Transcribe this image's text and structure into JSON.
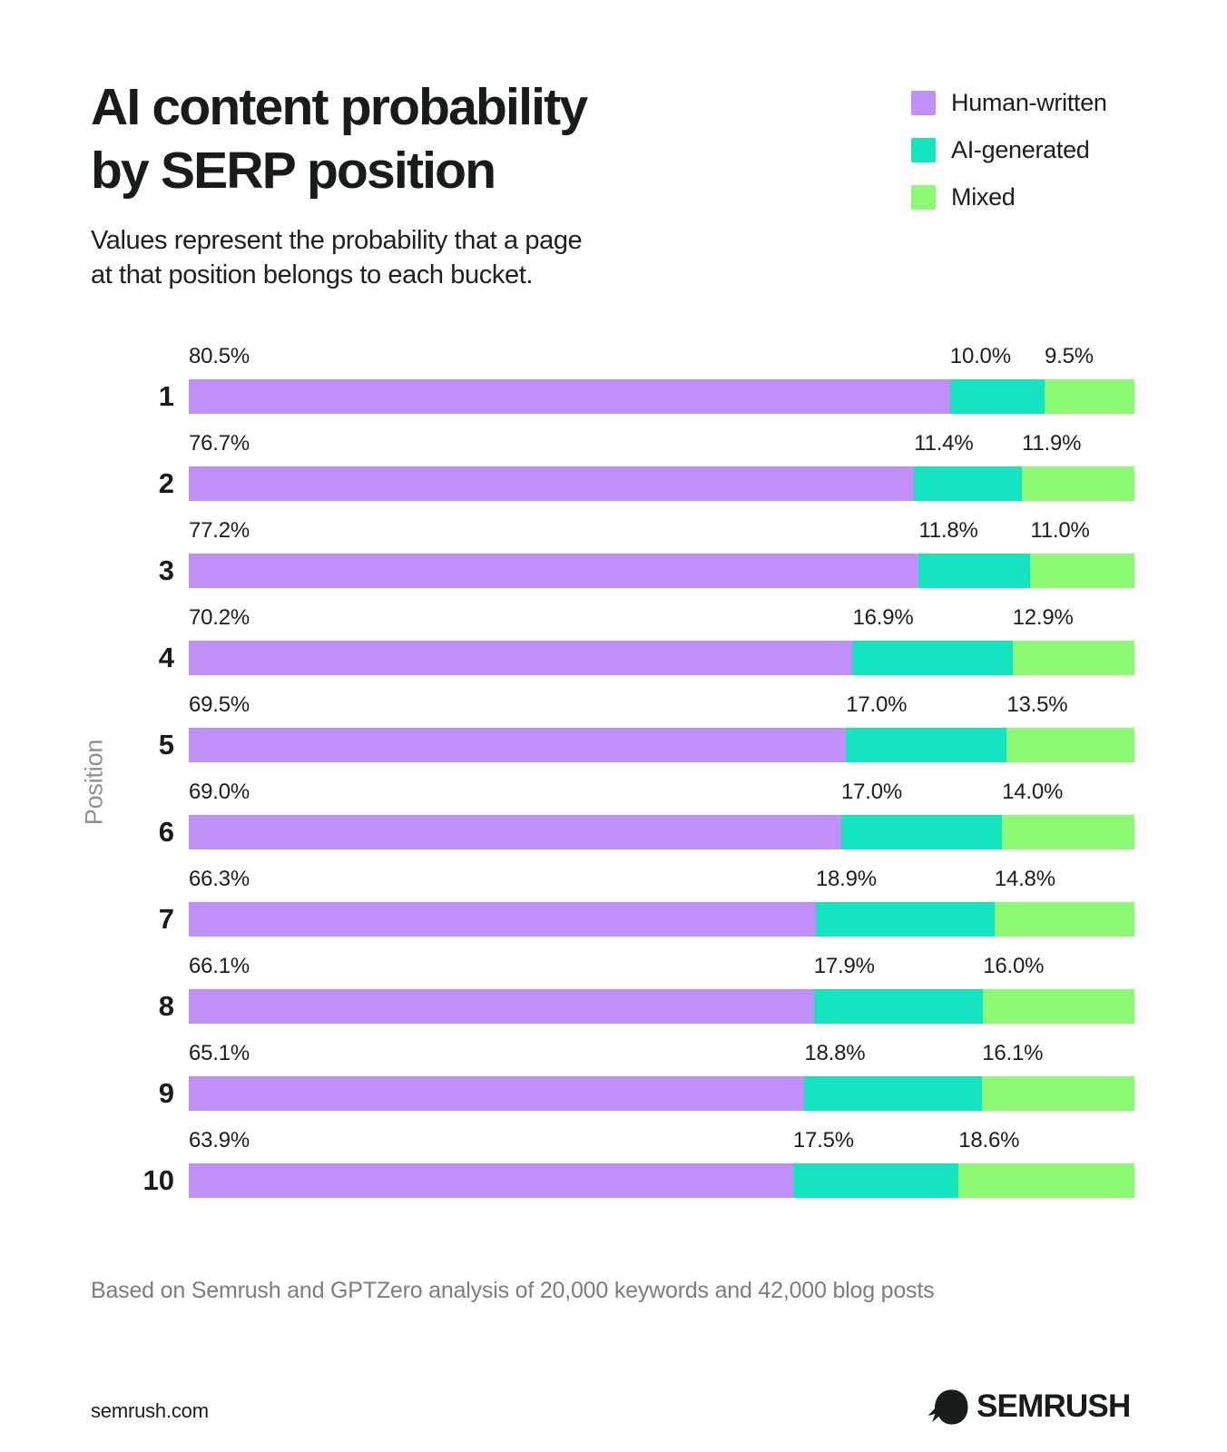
{
  "header": {
    "title_line1": "AI content probability",
    "title_line2": "by SERP position",
    "subtitle_line1": "Values represent the probability that a page",
    "subtitle_line2": "at that position belongs to each bucket."
  },
  "legend": {
    "items": [
      {
        "label": "Human-written",
        "color": "#c08ff8"
      },
      {
        "label": "AI-generated",
        "color": "#14e5c0"
      },
      {
        "label": "Mixed",
        "color": "#8dfa73"
      }
    ]
  },
  "chart_data": {
    "type": "bar",
    "orientation": "horizontal",
    "stacked": true,
    "title": "AI content probability by SERP position",
    "ylabel": "Position",
    "categories": [
      1,
      2,
      3,
      4,
      5,
      6,
      7,
      8,
      9,
      10
    ],
    "series": [
      {
        "name": "Human-written",
        "color": "#c08ff8",
        "values": [
          80.5,
          76.7,
          77.2,
          70.2,
          69.5,
          69.0,
          66.3,
          66.1,
          65.1,
          63.9
        ]
      },
      {
        "name": "AI-generated",
        "color": "#14e5c0",
        "values": [
          10.0,
          11.4,
          11.8,
          16.9,
          17.0,
          17.0,
          18.9,
          17.9,
          18.8,
          17.5
        ]
      },
      {
        "name": "Mixed",
        "color": "#8dfa73",
        "values": [
          9.5,
          11.9,
          11.0,
          12.9,
          13.5,
          14.0,
          14.8,
          16.0,
          16.1,
          18.6
        ]
      }
    ],
    "value_suffix": "%",
    "xlim": [
      0,
      100
    ],
    "grid": false,
    "legend_position": "top-right"
  },
  "footnote": "Based on Semrush and GPTZero analysis of 20,000 keywords and 42,000 blog posts",
  "footer": {
    "site": "semrush.com",
    "brand": "SEMRUSH"
  }
}
